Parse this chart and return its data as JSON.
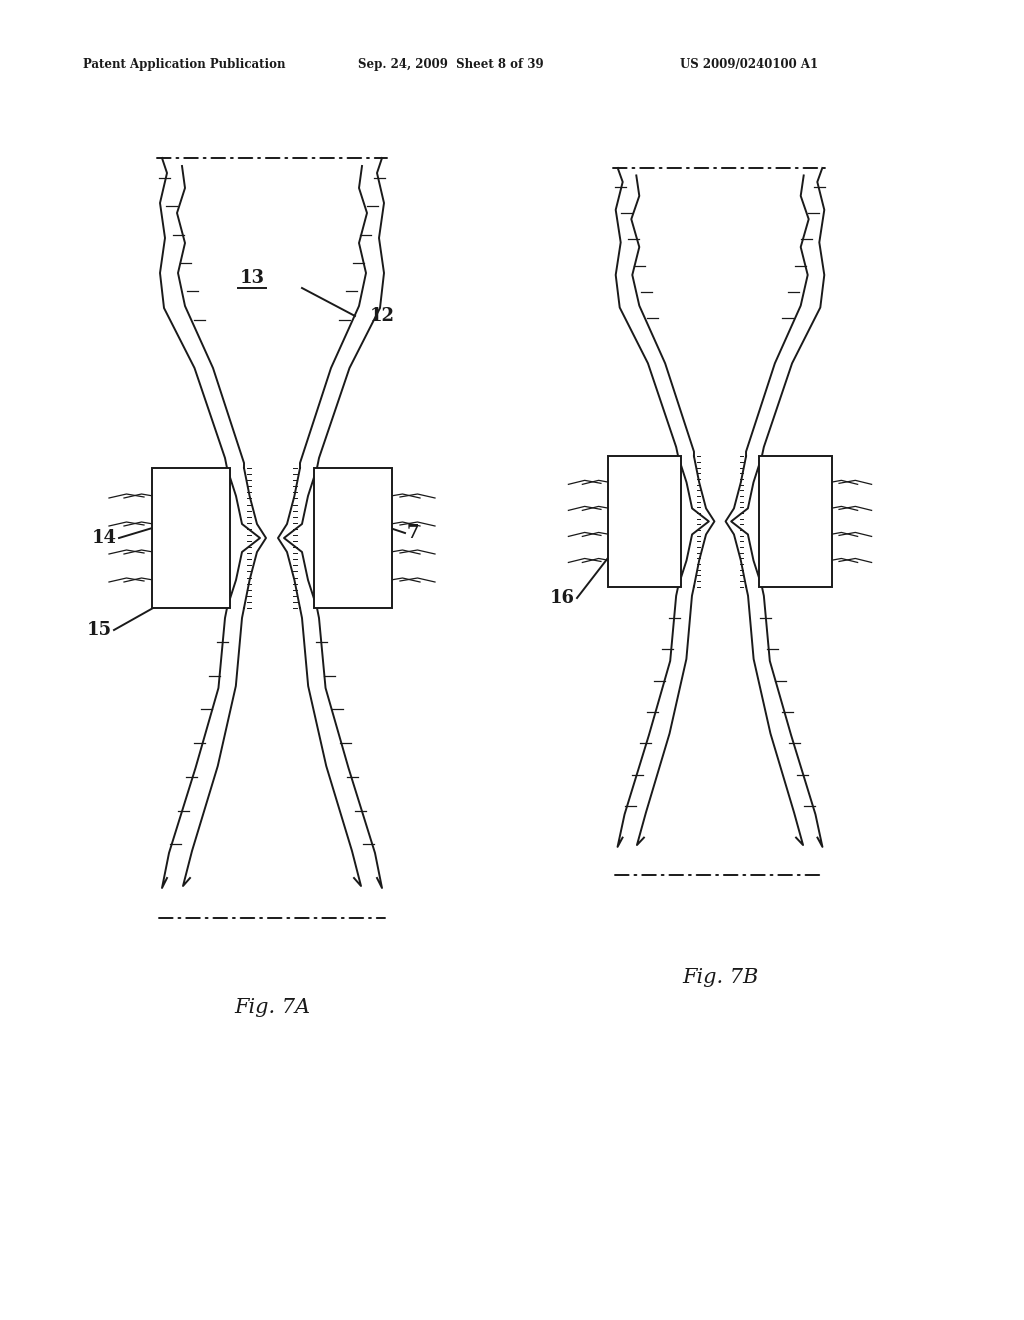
{
  "header_left": "Patent Application Publication",
  "header_center": "Sep. 24, 2009  Sheet 8 of 39",
  "header_right": "US 2009/0240100 A1",
  "fig7a_label": "Fig. 7A",
  "fig7b_label": "Fig. 7B",
  "bg_color": "#ffffff",
  "line_color": "#1a1a1a",
  "lw": 1.4,
  "lw_thin": 0.9
}
